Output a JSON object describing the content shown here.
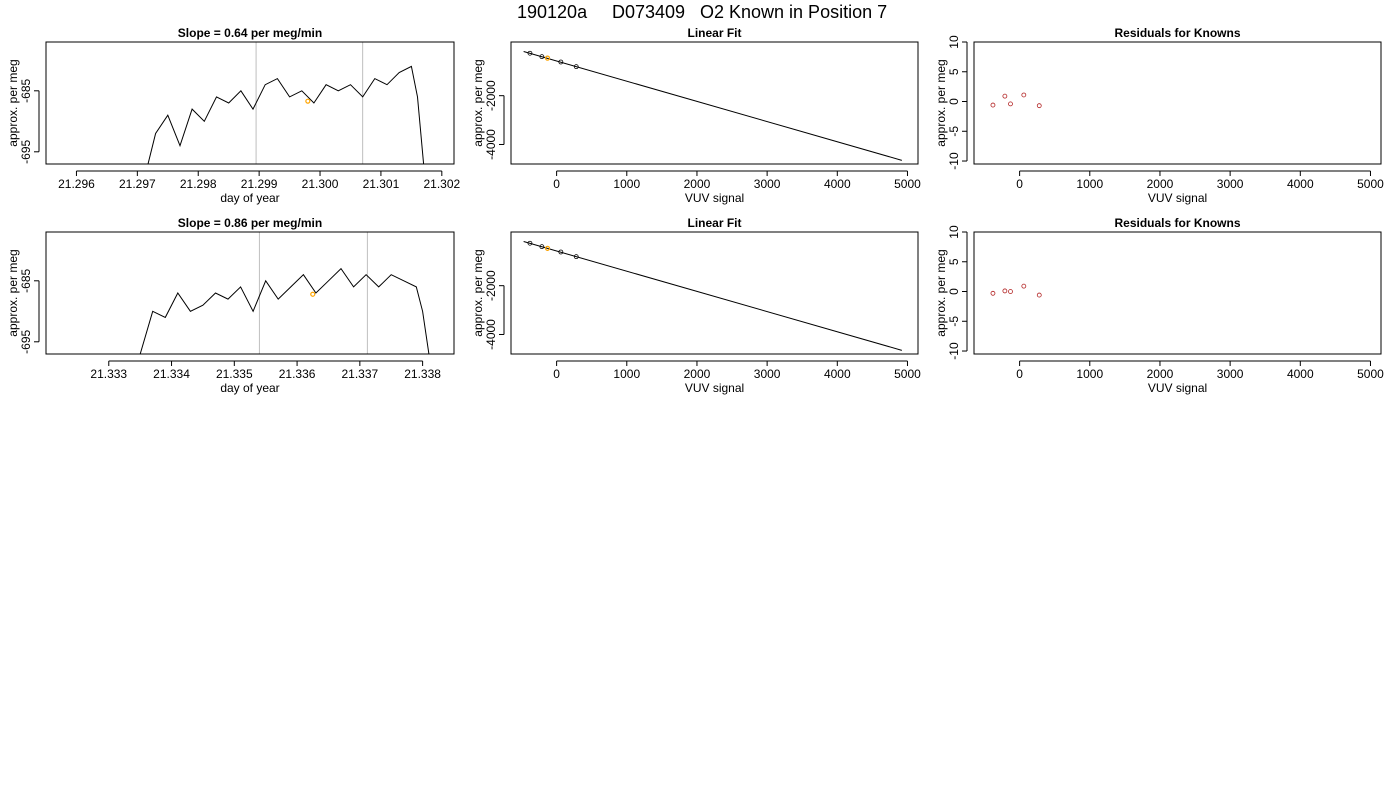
{
  "main_title": {
    "run": "190120a",
    "id": "D073409",
    "text": "O2 Known in Position  7"
  },
  "colors": {
    "line": "#000000",
    "gray_marker": "#bebebe",
    "highlight": "#ffa500",
    "residual_points": "#b22222"
  },
  "chart_data": [
    {
      "type": "line",
      "title": "Slope =  0.64  per meg/min",
      "xlabel": "day of year",
      "ylabel": "approx. per meg",
      "xlim": [
        21.2955,
        21.3022
      ],
      "ylim": [
        -697,
        -677
      ],
      "x_ticks": [
        21.296,
        21.297,
        21.298,
        21.299,
        21.3,
        21.301,
        21.302
      ],
      "x_tick_labels": [
        "21.296",
        "21.297",
        "21.298",
        "21.299",
        "21.300",
        "21.301",
        "21.302"
      ],
      "y_ticks": [
        -695,
        -685
      ],
      "y_tick_labels": [
        "-695",
        "-685"
      ],
      "vlines": [
        21.29895,
        21.3007
      ],
      "highlight_point": {
        "x": 21.2998,
        "y": -686.7
      },
      "x": [
        21.29715,
        21.2973,
        21.2975,
        21.2977,
        21.2979,
        21.2981,
        21.2983,
        21.2985,
        21.2987,
        21.2989,
        21.2991,
        21.2993,
        21.2995,
        21.2997,
        21.2999,
        21.3001,
        21.3003,
        21.3005,
        21.3007,
        21.3009,
        21.3011,
        21.3013,
        21.3015,
        21.3016,
        21.3017
      ],
      "values": [
        -698,
        -692,
        -689,
        -694,
        -688,
        -690,
        -686,
        -687,
        -685,
        -688,
        -684,
        -683,
        -686,
        -685,
        -687,
        -684,
        -685,
        -684,
        -686,
        -683,
        -684,
        -682,
        -681,
        -686,
        -697
      ]
    },
    {
      "type": "line",
      "title": "Linear Fit",
      "xlabel": "VUV signal",
      "ylabel": "approx. per meg",
      "xlim": [
        -650,
        5150
      ],
      "ylim": [
        -4800,
        200
      ],
      "x_ticks": [
        0,
        1000,
        2000,
        3000,
        4000,
        5000
      ],
      "x_tick_labels": [
        "0",
        "1000",
        "2000",
        "3000",
        "4000",
        "5000"
      ],
      "y_ticks": [
        -4000,
        -2000
      ],
      "y_tick_labels": [
        "-4000",
        "-2000"
      ],
      "fit_line": {
        "x": [
          -470,
          4920
        ],
        "y": [
          -190,
          -4650
        ]
      },
      "points": [
        {
          "x": -380,
          "y": -260
        },
        {
          "x": -210,
          "y": -400
        },
        {
          "x": -130,
          "y": -460
        },
        {
          "x": 60,
          "y": -620
        },
        {
          "x": 280,
          "y": -810
        }
      ],
      "highlight_point": {
        "x": -130,
        "y": -460
      }
    },
    {
      "type": "scatter",
      "title": "Residuals for Knowns",
      "xlabel": "VUV signal",
      "ylabel": "approx. per meg",
      "xlim": [
        -650,
        5150
      ],
      "ylim": [
        -10.5,
        10
      ],
      "x_ticks": [
        0,
        1000,
        2000,
        3000,
        4000,
        5000
      ],
      "x_tick_labels": [
        "0",
        "1000",
        "2000",
        "3000",
        "4000",
        "5000"
      ],
      "y_ticks": [
        -10,
        -5,
        0,
        5,
        10
      ],
      "y_tick_labels": [
        "-10",
        "-5",
        "0",
        "5",
        "10"
      ],
      "points": [
        {
          "x": -380,
          "y": -0.6
        },
        {
          "x": -210,
          "y": 0.9
        },
        {
          "x": -130,
          "y": -0.4
        },
        {
          "x": 60,
          "y": 1.1
        },
        {
          "x": 280,
          "y": -0.7
        }
      ]
    },
    {
      "type": "line",
      "title": "Slope =  0.86  per meg/min",
      "xlabel": "day of year",
      "ylabel": "approx. per meg",
      "xlim": [
        21.332,
        21.3385
      ],
      "ylim": [
        -697,
        -677
      ],
      "x_ticks": [
        21.333,
        21.334,
        21.335,
        21.336,
        21.337,
        21.338
      ],
      "x_tick_labels": [
        "21.333",
        "21.334",
        "21.335",
        "21.336",
        "21.337",
        "21.338"
      ],
      "y_ticks": [
        -695,
        -685
      ],
      "y_tick_labels": [
        "-695",
        "-685"
      ],
      "vlines": [
        21.3354,
        21.33712
      ],
      "highlight_point": {
        "x": 21.33625,
        "y": -687.2
      },
      "x": [
        21.3335,
        21.3337,
        21.3339,
        21.3341,
        21.3343,
        21.3345,
        21.3347,
        21.3349,
        21.3351,
        21.3353,
        21.3355,
        21.3357,
        21.3359,
        21.3361,
        21.3363,
        21.3365,
        21.3367,
        21.3369,
        21.3371,
        21.3373,
        21.3375,
        21.3377,
        21.3379,
        21.338,
        21.3381
      ],
      "values": [
        -697,
        -690,
        -691,
        -687,
        -690,
        -689,
        -687,
        -688,
        -686,
        -690,
        -685,
        -688,
        -686,
        -684,
        -687,
        -685,
        -683,
        -686,
        -684,
        -686,
        -684,
        -685,
        -686,
        -690,
        -697
      ]
    },
    {
      "type": "line",
      "title": "Linear Fit",
      "xlabel": "VUV signal",
      "ylabel": "approx. per meg",
      "xlim": [
        -650,
        5150
      ],
      "ylim": [
        -4800,
        200
      ],
      "x_ticks": [
        0,
        1000,
        2000,
        3000,
        4000,
        5000
      ],
      "x_tick_labels": [
        "0",
        "1000",
        "2000",
        "3000",
        "4000",
        "5000"
      ],
      "y_ticks": [
        -4000,
        -2000
      ],
      "y_tick_labels": [
        "-4000",
        "-2000"
      ],
      "fit_line": {
        "x": [
          -470,
          4920
        ],
        "y": [
          -190,
          -4650
        ]
      },
      "points": [
        {
          "x": -380,
          "y": -260
        },
        {
          "x": -210,
          "y": -400
        },
        {
          "x": -130,
          "y": -470
        },
        {
          "x": 60,
          "y": -620
        },
        {
          "x": 280,
          "y": -810
        }
      ],
      "highlight_point": {
        "x": -130,
        "y": -470
      }
    },
    {
      "type": "scatter",
      "title": "Residuals for Knowns",
      "xlabel": "VUV signal",
      "ylabel": "approx. per meg",
      "xlim": [
        -650,
        5150
      ],
      "ylim": [
        -10.5,
        10
      ],
      "x_ticks": [
        0,
        1000,
        2000,
        3000,
        4000,
        5000
      ],
      "x_tick_labels": [
        "0",
        "1000",
        "2000",
        "3000",
        "4000",
        "5000"
      ],
      "y_ticks": [
        -10,
        -5,
        0,
        5,
        10
      ],
      "y_tick_labels": [
        "-10",
        "-5",
        "0",
        "5",
        "10"
      ],
      "points": [
        {
          "x": -380,
          "y": -0.3
        },
        {
          "x": -210,
          "y": 0.1
        },
        {
          "x": -130,
          "y": 0.0
        },
        {
          "x": 60,
          "y": 0.9
        },
        {
          "x": 280,
          "y": -0.6
        }
      ]
    }
  ]
}
